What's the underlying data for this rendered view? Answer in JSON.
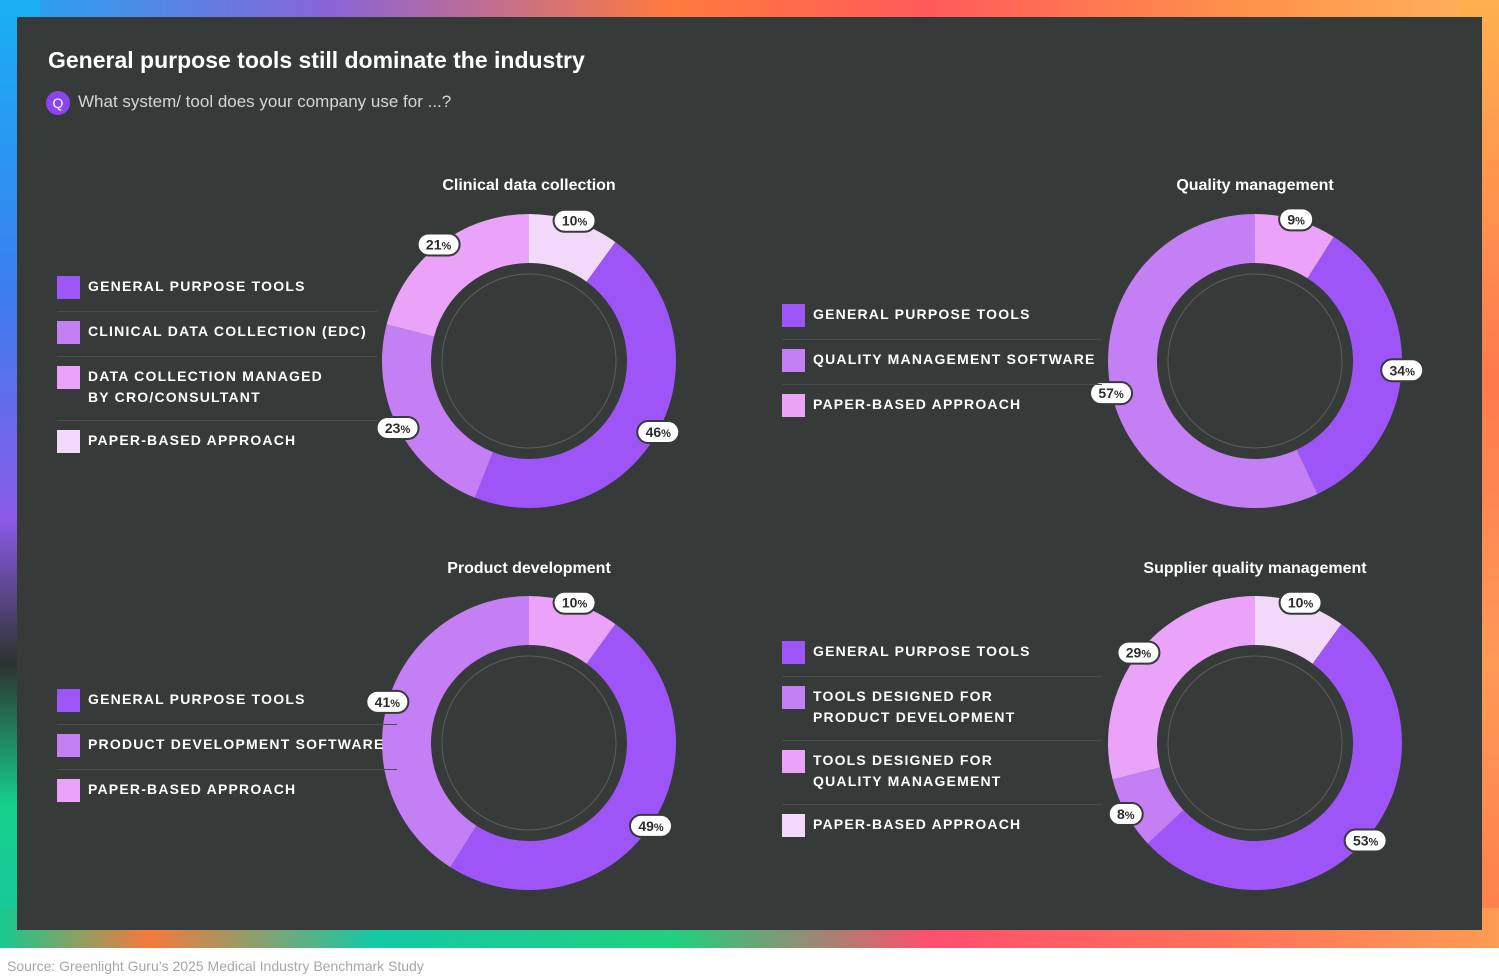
{
  "header": {
    "title": "General purpose tools still dominate the industry",
    "question_icon": "Q",
    "question": "What system/ tool does your company use for ...?"
  },
  "colors": {
    "general": "#9d55f8",
    "specialized": "#c37ff3",
    "third": "#eaa3f8",
    "paper": "#f2d9f9",
    "background": "#363a38"
  },
  "source": "Source: Greenlight Guru’s 2025 Medical Industry Benchmark Study",
  "chart_data": [
    {
      "type": "pie",
      "title": "Clinical data collection",
      "series": [
        {
          "name": "GENERAL PURPOSE TOOLS",
          "value": 46,
          "color": "#9d55f8"
        },
        {
          "name": "CLINICAL DATA COLLECTION (EDC)",
          "value": 23,
          "color": "#c37ff3"
        },
        {
          "name": "DATA COLLECTION MANAGED\nBY CRO/CONSULTANT",
          "value": 21,
          "color": "#eaa3f8"
        },
        {
          "name": "PAPER-BASED APPROACH",
          "value": 10,
          "color": "#f2d9f9"
        }
      ]
    },
    {
      "type": "pie",
      "title": "Quality management",
      "series": [
        {
          "name": "GENERAL PURPOSE TOOLS",
          "value": 34,
          "color": "#9d55f8"
        },
        {
          "name": "QUALITY MANAGEMENT SOFTWARE",
          "value": 57,
          "color": "#c37ff3"
        },
        {
          "name": "PAPER-BASED APPROACH",
          "value": 9,
          "color": "#eaa3f8"
        }
      ]
    },
    {
      "type": "pie",
      "title": "Product development",
      "series": [
        {
          "name": "GENERAL PURPOSE TOOLS",
          "value": 49,
          "color": "#9d55f8"
        },
        {
          "name": "PRODUCT DEVELOPMENT SOFTWARE",
          "value": 41,
          "color": "#c37ff3"
        },
        {
          "name": "PAPER-BASED APPROACH",
          "value": 10,
          "color": "#eaa3f8"
        }
      ]
    },
    {
      "type": "pie",
      "title": "Supplier quality management",
      "series": [
        {
          "name": "GENERAL PURPOSE TOOLS",
          "value": 53,
          "color": "#9d55f8"
        },
        {
          "name": "TOOLS DESIGNED FOR\nPRODUCT DEVELOPMENT",
          "value": 8,
          "color": "#c37ff3"
        },
        {
          "name": "TOOLS DESIGNED FOR\nQUALITY MANAGEMENT",
          "value": 29,
          "color": "#eaa3f8"
        },
        {
          "name": "PAPER-BASED APPROACH",
          "value": 10,
          "color": "#f2d9f9"
        }
      ]
    }
  ]
}
